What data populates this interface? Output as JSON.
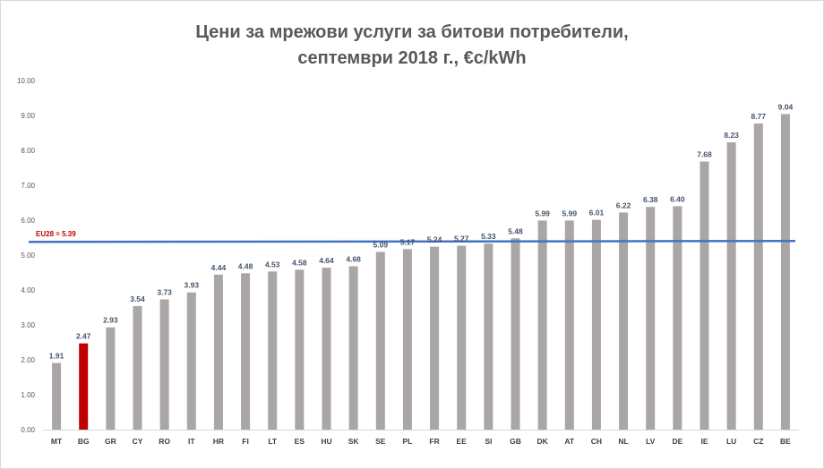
{
  "chart_data": {
    "type": "bar",
    "title_line1": "Цени за мрежови услуги за битови потребители,",
    "title_line2": "септември 2018 г., €c/kWh",
    "xlabel": "",
    "ylabel": "",
    "ylim": [
      0,
      10
    ],
    "yticks": [
      "0.00",
      "1.00",
      "2.00",
      "3.00",
      "4.00",
      "5.00",
      "6.00",
      "7.00",
      "8.00",
      "9.00",
      "10.00"
    ],
    "categories": [
      "MT",
      "BG",
      "GR",
      "CY",
      "RO",
      "IT",
      "HR",
      "FI",
      "LT",
      "ES",
      "HU",
      "SK",
      "SE",
      "PL",
      "FR",
      "EE",
      "SI",
      "GB",
      "DK",
      "AT",
      "CH",
      "NL",
      "LV",
      "DE",
      "IE",
      "LU",
      "CZ",
      "BE"
    ],
    "values": [
      1.91,
      2.47,
      2.93,
      3.54,
      3.73,
      3.93,
      4.44,
      4.48,
      4.53,
      4.58,
      4.64,
      4.68,
      5.09,
      5.17,
      5.24,
      5.27,
      5.33,
      5.48,
      5.99,
      5.99,
      6.01,
      6.22,
      6.38,
      6.4,
      7.68,
      8.23,
      8.77,
      9.04
    ],
    "labels": [
      "1.91",
      "2.47",
      "2.93",
      "3.54",
      "3.73",
      "3.93",
      "4.44",
      "4.48",
      "4.53",
      "4.58",
      "4.64",
      "4.68",
      "5.09",
      "5.17",
      "5.24",
      "5.27",
      "5.33",
      "5.48",
      "5.99",
      "5.99",
      "6.01",
      "6.22",
      "6.38",
      "6.40",
      "7.68",
      "8.23",
      "8.77",
      "9.04"
    ],
    "highlight_category": "BG",
    "reference_line": {
      "label": "EU28 = 5.39",
      "value": 5.39
    },
    "colors": {
      "bar": "#aba6a6",
      "highlight": "#c00000",
      "reference": "#4472c4"
    },
    "grid": false,
    "legend": "none"
  }
}
